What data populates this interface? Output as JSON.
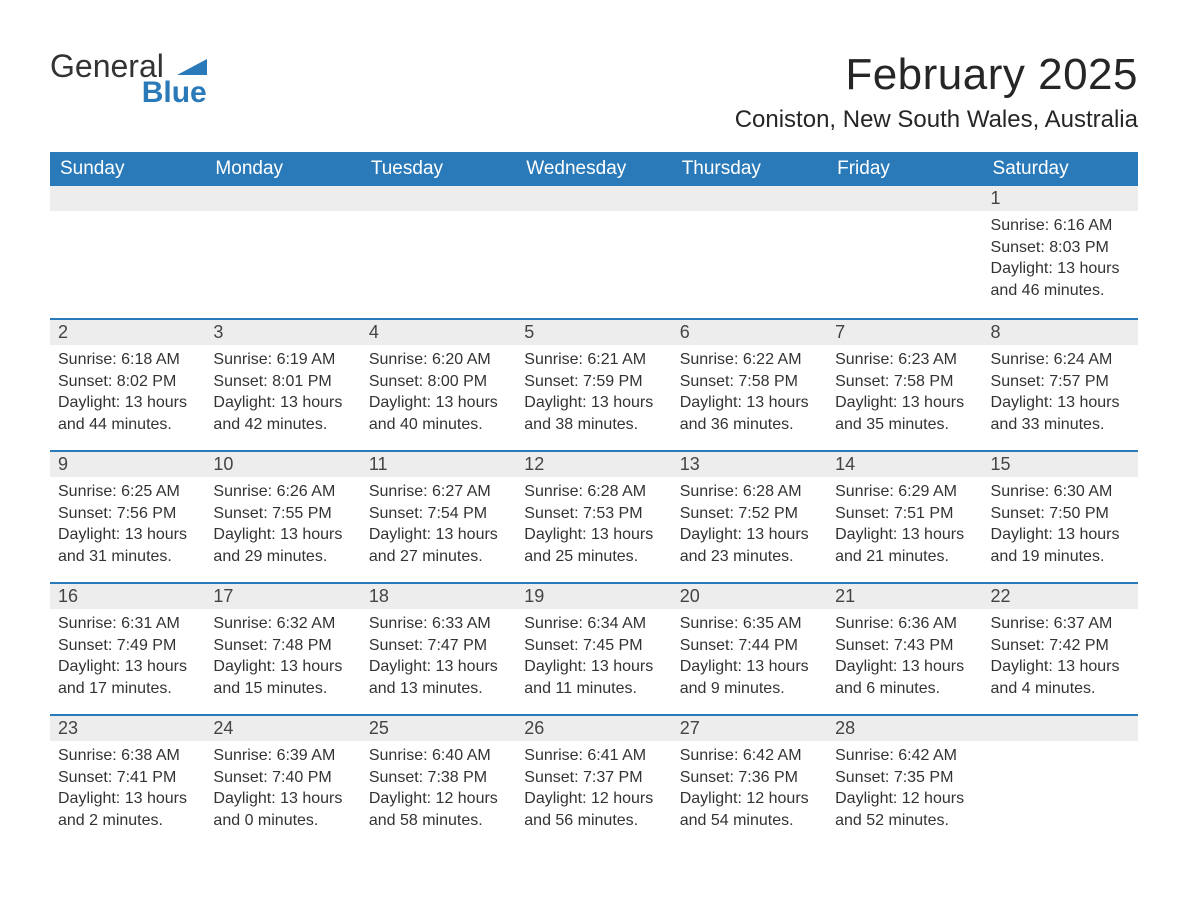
{
  "logo": {
    "text_general": "General",
    "text_blue": "Blue",
    "flag_color": "#2a7ab9"
  },
  "title": {
    "month_year": "February 2025",
    "location": "Coniston, New South Wales, Australia",
    "title_fontsize": 44,
    "location_fontsize": 24,
    "title_color": "#262626"
  },
  "styling": {
    "header_bg": "#2a7ab9",
    "header_text_color": "#ffffff",
    "daynum_bg": "#ededed",
    "daynum_text_color": "#444444",
    "body_text_color": "#333333",
    "week_divider_color": "#2a7ab9",
    "page_bg": "#ffffff",
    "body_fontsize": 16,
    "dow_fontsize": 19,
    "daynum_fontsize": 18
  },
  "days_of_week": [
    "Sunday",
    "Monday",
    "Tuesday",
    "Wednesday",
    "Thursday",
    "Friday",
    "Saturday"
  ],
  "weeks": [
    [
      {
        "empty": true
      },
      {
        "empty": true
      },
      {
        "empty": true
      },
      {
        "empty": true
      },
      {
        "empty": true
      },
      {
        "empty": true
      },
      {
        "num": "1",
        "sunrise": "Sunrise: 6:16 AM",
        "sunset": "Sunset: 8:03 PM",
        "daylight1": "Daylight: 13 hours",
        "daylight2": "and 46 minutes."
      }
    ],
    [
      {
        "num": "2",
        "sunrise": "Sunrise: 6:18 AM",
        "sunset": "Sunset: 8:02 PM",
        "daylight1": "Daylight: 13 hours",
        "daylight2": "and 44 minutes."
      },
      {
        "num": "3",
        "sunrise": "Sunrise: 6:19 AM",
        "sunset": "Sunset: 8:01 PM",
        "daylight1": "Daylight: 13 hours",
        "daylight2": "and 42 minutes."
      },
      {
        "num": "4",
        "sunrise": "Sunrise: 6:20 AM",
        "sunset": "Sunset: 8:00 PM",
        "daylight1": "Daylight: 13 hours",
        "daylight2": "and 40 minutes."
      },
      {
        "num": "5",
        "sunrise": "Sunrise: 6:21 AM",
        "sunset": "Sunset: 7:59 PM",
        "daylight1": "Daylight: 13 hours",
        "daylight2": "and 38 minutes."
      },
      {
        "num": "6",
        "sunrise": "Sunrise: 6:22 AM",
        "sunset": "Sunset: 7:58 PM",
        "daylight1": "Daylight: 13 hours",
        "daylight2": "and 36 minutes."
      },
      {
        "num": "7",
        "sunrise": "Sunrise: 6:23 AM",
        "sunset": "Sunset: 7:58 PM",
        "daylight1": "Daylight: 13 hours",
        "daylight2": "and 35 minutes."
      },
      {
        "num": "8",
        "sunrise": "Sunrise: 6:24 AM",
        "sunset": "Sunset: 7:57 PM",
        "daylight1": "Daylight: 13 hours",
        "daylight2": "and 33 minutes."
      }
    ],
    [
      {
        "num": "9",
        "sunrise": "Sunrise: 6:25 AM",
        "sunset": "Sunset: 7:56 PM",
        "daylight1": "Daylight: 13 hours",
        "daylight2": "and 31 minutes."
      },
      {
        "num": "10",
        "sunrise": "Sunrise: 6:26 AM",
        "sunset": "Sunset: 7:55 PM",
        "daylight1": "Daylight: 13 hours",
        "daylight2": "and 29 minutes."
      },
      {
        "num": "11",
        "sunrise": "Sunrise: 6:27 AM",
        "sunset": "Sunset: 7:54 PM",
        "daylight1": "Daylight: 13 hours",
        "daylight2": "and 27 minutes."
      },
      {
        "num": "12",
        "sunrise": "Sunrise: 6:28 AM",
        "sunset": "Sunset: 7:53 PM",
        "daylight1": "Daylight: 13 hours",
        "daylight2": "and 25 minutes."
      },
      {
        "num": "13",
        "sunrise": "Sunrise: 6:28 AM",
        "sunset": "Sunset: 7:52 PM",
        "daylight1": "Daylight: 13 hours",
        "daylight2": "and 23 minutes."
      },
      {
        "num": "14",
        "sunrise": "Sunrise: 6:29 AM",
        "sunset": "Sunset: 7:51 PM",
        "daylight1": "Daylight: 13 hours",
        "daylight2": "and 21 minutes."
      },
      {
        "num": "15",
        "sunrise": "Sunrise: 6:30 AM",
        "sunset": "Sunset: 7:50 PM",
        "daylight1": "Daylight: 13 hours",
        "daylight2": "and 19 minutes."
      }
    ],
    [
      {
        "num": "16",
        "sunrise": "Sunrise: 6:31 AM",
        "sunset": "Sunset: 7:49 PM",
        "daylight1": "Daylight: 13 hours",
        "daylight2": "and 17 minutes."
      },
      {
        "num": "17",
        "sunrise": "Sunrise: 6:32 AM",
        "sunset": "Sunset: 7:48 PM",
        "daylight1": "Daylight: 13 hours",
        "daylight2": "and 15 minutes."
      },
      {
        "num": "18",
        "sunrise": "Sunrise: 6:33 AM",
        "sunset": "Sunset: 7:47 PM",
        "daylight1": "Daylight: 13 hours",
        "daylight2": "and 13 minutes."
      },
      {
        "num": "19",
        "sunrise": "Sunrise: 6:34 AM",
        "sunset": "Sunset: 7:45 PM",
        "daylight1": "Daylight: 13 hours",
        "daylight2": "and 11 minutes."
      },
      {
        "num": "20",
        "sunrise": "Sunrise: 6:35 AM",
        "sunset": "Sunset: 7:44 PM",
        "daylight1": "Daylight: 13 hours",
        "daylight2": "and 9 minutes."
      },
      {
        "num": "21",
        "sunrise": "Sunrise: 6:36 AM",
        "sunset": "Sunset: 7:43 PM",
        "daylight1": "Daylight: 13 hours",
        "daylight2": "and 6 minutes."
      },
      {
        "num": "22",
        "sunrise": "Sunrise: 6:37 AM",
        "sunset": "Sunset: 7:42 PM",
        "daylight1": "Daylight: 13 hours",
        "daylight2": "and 4 minutes."
      }
    ],
    [
      {
        "num": "23",
        "sunrise": "Sunrise: 6:38 AM",
        "sunset": "Sunset: 7:41 PM",
        "daylight1": "Daylight: 13 hours",
        "daylight2": "and 2 minutes."
      },
      {
        "num": "24",
        "sunrise": "Sunrise: 6:39 AM",
        "sunset": "Sunset: 7:40 PM",
        "daylight1": "Daylight: 13 hours",
        "daylight2": "and 0 minutes."
      },
      {
        "num": "25",
        "sunrise": "Sunrise: 6:40 AM",
        "sunset": "Sunset: 7:38 PM",
        "daylight1": "Daylight: 12 hours",
        "daylight2": "and 58 minutes."
      },
      {
        "num": "26",
        "sunrise": "Sunrise: 6:41 AM",
        "sunset": "Sunset: 7:37 PM",
        "daylight1": "Daylight: 12 hours",
        "daylight2": "and 56 minutes."
      },
      {
        "num": "27",
        "sunrise": "Sunrise: 6:42 AM",
        "sunset": "Sunset: 7:36 PM",
        "daylight1": "Daylight: 12 hours",
        "daylight2": "and 54 minutes."
      },
      {
        "num": "28",
        "sunrise": "Sunrise: 6:42 AM",
        "sunset": "Sunset: 7:35 PM",
        "daylight1": "Daylight: 12 hours",
        "daylight2": "and 52 minutes."
      },
      {
        "empty": true
      }
    ]
  ]
}
